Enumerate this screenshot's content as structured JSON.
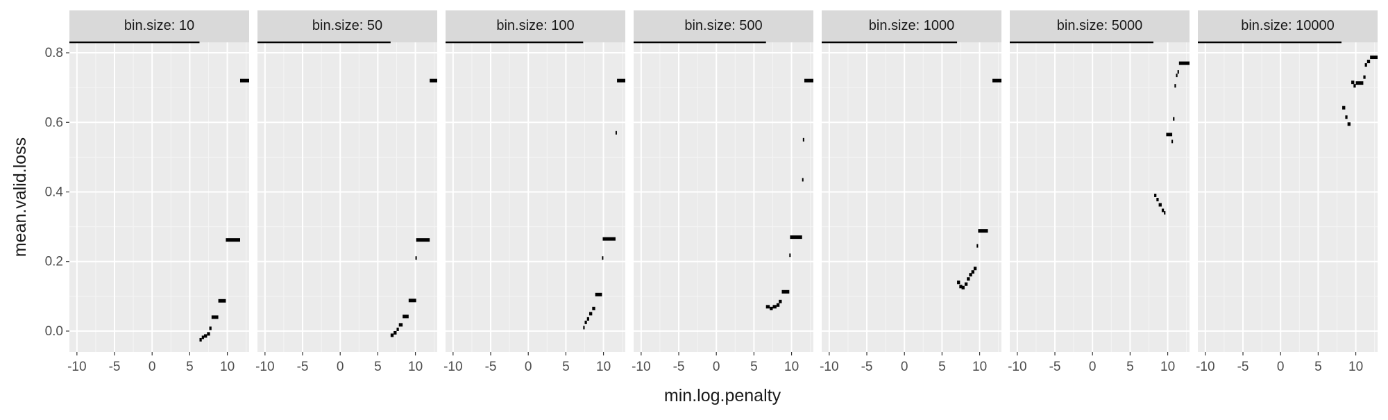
{
  "chart_data": {
    "type": "scatter",
    "facet_label_prefix": "bin.size: ",
    "xlabel": "min.log.penalty",
    "ylabel": "mean.valid.loss",
    "xlim": [
      -11,
      12.9
    ],
    "ylim": [
      -0.06,
      0.83
    ],
    "x_ticks": [
      -10,
      -5,
      0,
      5,
      10
    ],
    "x_tick_labels": [
      "-10",
      "-5",
      "0",
      "5",
      "10"
    ],
    "y_ticks": [
      0.0,
      0.2,
      0.4,
      0.6,
      0.8
    ],
    "y_tick_labels": [
      "0.0",
      "0.2",
      "0.4",
      "0.6",
      "0.8"
    ],
    "grid": true,
    "colors": {
      "panel": "#ebebeb",
      "strip": "#d9d9d9",
      "grid_major": "#ffffff",
      "grid_minor": "#f5f5f5",
      "mark": "#000000",
      "text": "#4d4d4d",
      "title": "#1a1a1a"
    },
    "panels": [
      {
        "bin_size": "10",
        "line": [
          -11,
          6.3
        ],
        "segments": [
          [
            6.3,
            6.6,
            -0.025
          ],
          [
            6.6,
            6.9,
            -0.018
          ],
          [
            6.9,
            7.3,
            -0.014
          ],
          [
            7.3,
            7.7,
            -0.008
          ],
          [
            7.6,
            7.9,
            0.008
          ],
          [
            7.9,
            8.8,
            0.04
          ],
          [
            8.8,
            9.8,
            0.087
          ],
          [
            9.8,
            11.7,
            0.262
          ],
          [
            11.7,
            12.9,
            0.72
          ]
        ]
      },
      {
        "bin_size": "50",
        "line": [
          -11,
          6.7
        ],
        "segments": [
          [
            6.7,
            7.1,
            -0.012
          ],
          [
            7.1,
            7.5,
            -0.005
          ],
          [
            7.5,
            7.8,
            0.005
          ],
          [
            7.8,
            8.3,
            0.018
          ],
          [
            8.3,
            9.1,
            0.042
          ],
          [
            9.1,
            10.1,
            0.088
          ],
          [
            10.0,
            10.1,
            0.21
          ],
          [
            10.1,
            11.9,
            0.262
          ],
          [
            11.9,
            12.9,
            0.72
          ]
        ]
      },
      {
        "bin_size": "100",
        "line": [
          -11,
          7.3
        ],
        "segments": [
          [
            7.3,
            7.5,
            0.01
          ],
          [
            7.5,
            7.8,
            0.025
          ],
          [
            7.8,
            8.1,
            0.035
          ],
          [
            8.1,
            8.5,
            0.05
          ],
          [
            8.5,
            8.9,
            0.065
          ],
          [
            8.9,
            9.8,
            0.105
          ],
          [
            9.8,
            9.9,
            0.21
          ],
          [
            9.9,
            11.6,
            0.265
          ],
          [
            11.6,
            11.7,
            0.57
          ],
          [
            11.8,
            12.9,
            0.72
          ]
        ]
      },
      {
        "bin_size": "500",
        "line": [
          -11,
          6.6
        ],
        "segments": [
          [
            6.6,
            7.1,
            0.07
          ],
          [
            7.1,
            7.5,
            0.065
          ],
          [
            7.5,
            8.0,
            0.07
          ],
          [
            8.0,
            8.4,
            0.075
          ],
          [
            8.3,
            8.7,
            0.085
          ],
          [
            8.7,
            9.7,
            0.113
          ],
          [
            9.7,
            9.8,
            0.218
          ],
          [
            9.8,
            11.4,
            0.27
          ],
          [
            11.4,
            11.5,
            0.435
          ],
          [
            11.5,
            11.6,
            0.55
          ],
          [
            11.7,
            12.9,
            0.72
          ]
        ]
      },
      {
        "bin_size": "1000",
        "line": [
          -11,
          7.0
        ],
        "segments": [
          [
            7.0,
            7.4,
            0.14
          ],
          [
            7.3,
            7.7,
            0.128
          ],
          [
            7.6,
            8.0,
            0.125
          ],
          [
            8.0,
            8.4,
            0.135
          ],
          [
            8.3,
            8.7,
            0.15
          ],
          [
            8.6,
            9.0,
            0.162
          ],
          [
            8.9,
            9.3,
            0.17
          ],
          [
            9.2,
            9.6,
            0.18
          ],
          [
            9.6,
            9.8,
            0.245
          ],
          [
            9.8,
            11.1,
            0.288
          ],
          [
            11.7,
            12.9,
            0.72
          ]
        ]
      },
      {
        "bin_size": "5000",
        "line": [
          -11,
          8.1
        ],
        "segments": [
          [
            8.2,
            8.5,
            0.39
          ],
          [
            8.5,
            8.8,
            0.378
          ],
          [
            8.8,
            9.2,
            0.363
          ],
          [
            9.2,
            9.5,
            0.347
          ],
          [
            9.5,
            9.7,
            0.34
          ],
          [
            9.8,
            10.6,
            0.565
          ],
          [
            10.5,
            10.7,
            0.545
          ],
          [
            10.7,
            10.9,
            0.61
          ],
          [
            10.9,
            11.1,
            0.705
          ],
          [
            11.1,
            11.3,
            0.735
          ],
          [
            11.3,
            11.5,
            0.745
          ],
          [
            11.5,
            12.9,
            0.77
          ]
        ]
      },
      {
        "bin_size": "10000",
        "line": [
          -11,
          8.1
        ],
        "segments": [
          [
            8.2,
            8.6,
            0.642
          ],
          [
            8.6,
            8.9,
            0.615
          ],
          [
            8.9,
            9.3,
            0.595
          ],
          [
            9.4,
            9.8,
            0.715
          ],
          [
            9.7,
            10.0,
            0.705
          ],
          [
            10.0,
            11.0,
            0.713
          ],
          [
            11.0,
            11.3,
            0.73
          ],
          [
            11.2,
            11.5,
            0.765
          ],
          [
            11.5,
            11.9,
            0.775
          ],
          [
            11.9,
            12.9,
            0.787
          ]
        ]
      }
    ]
  }
}
